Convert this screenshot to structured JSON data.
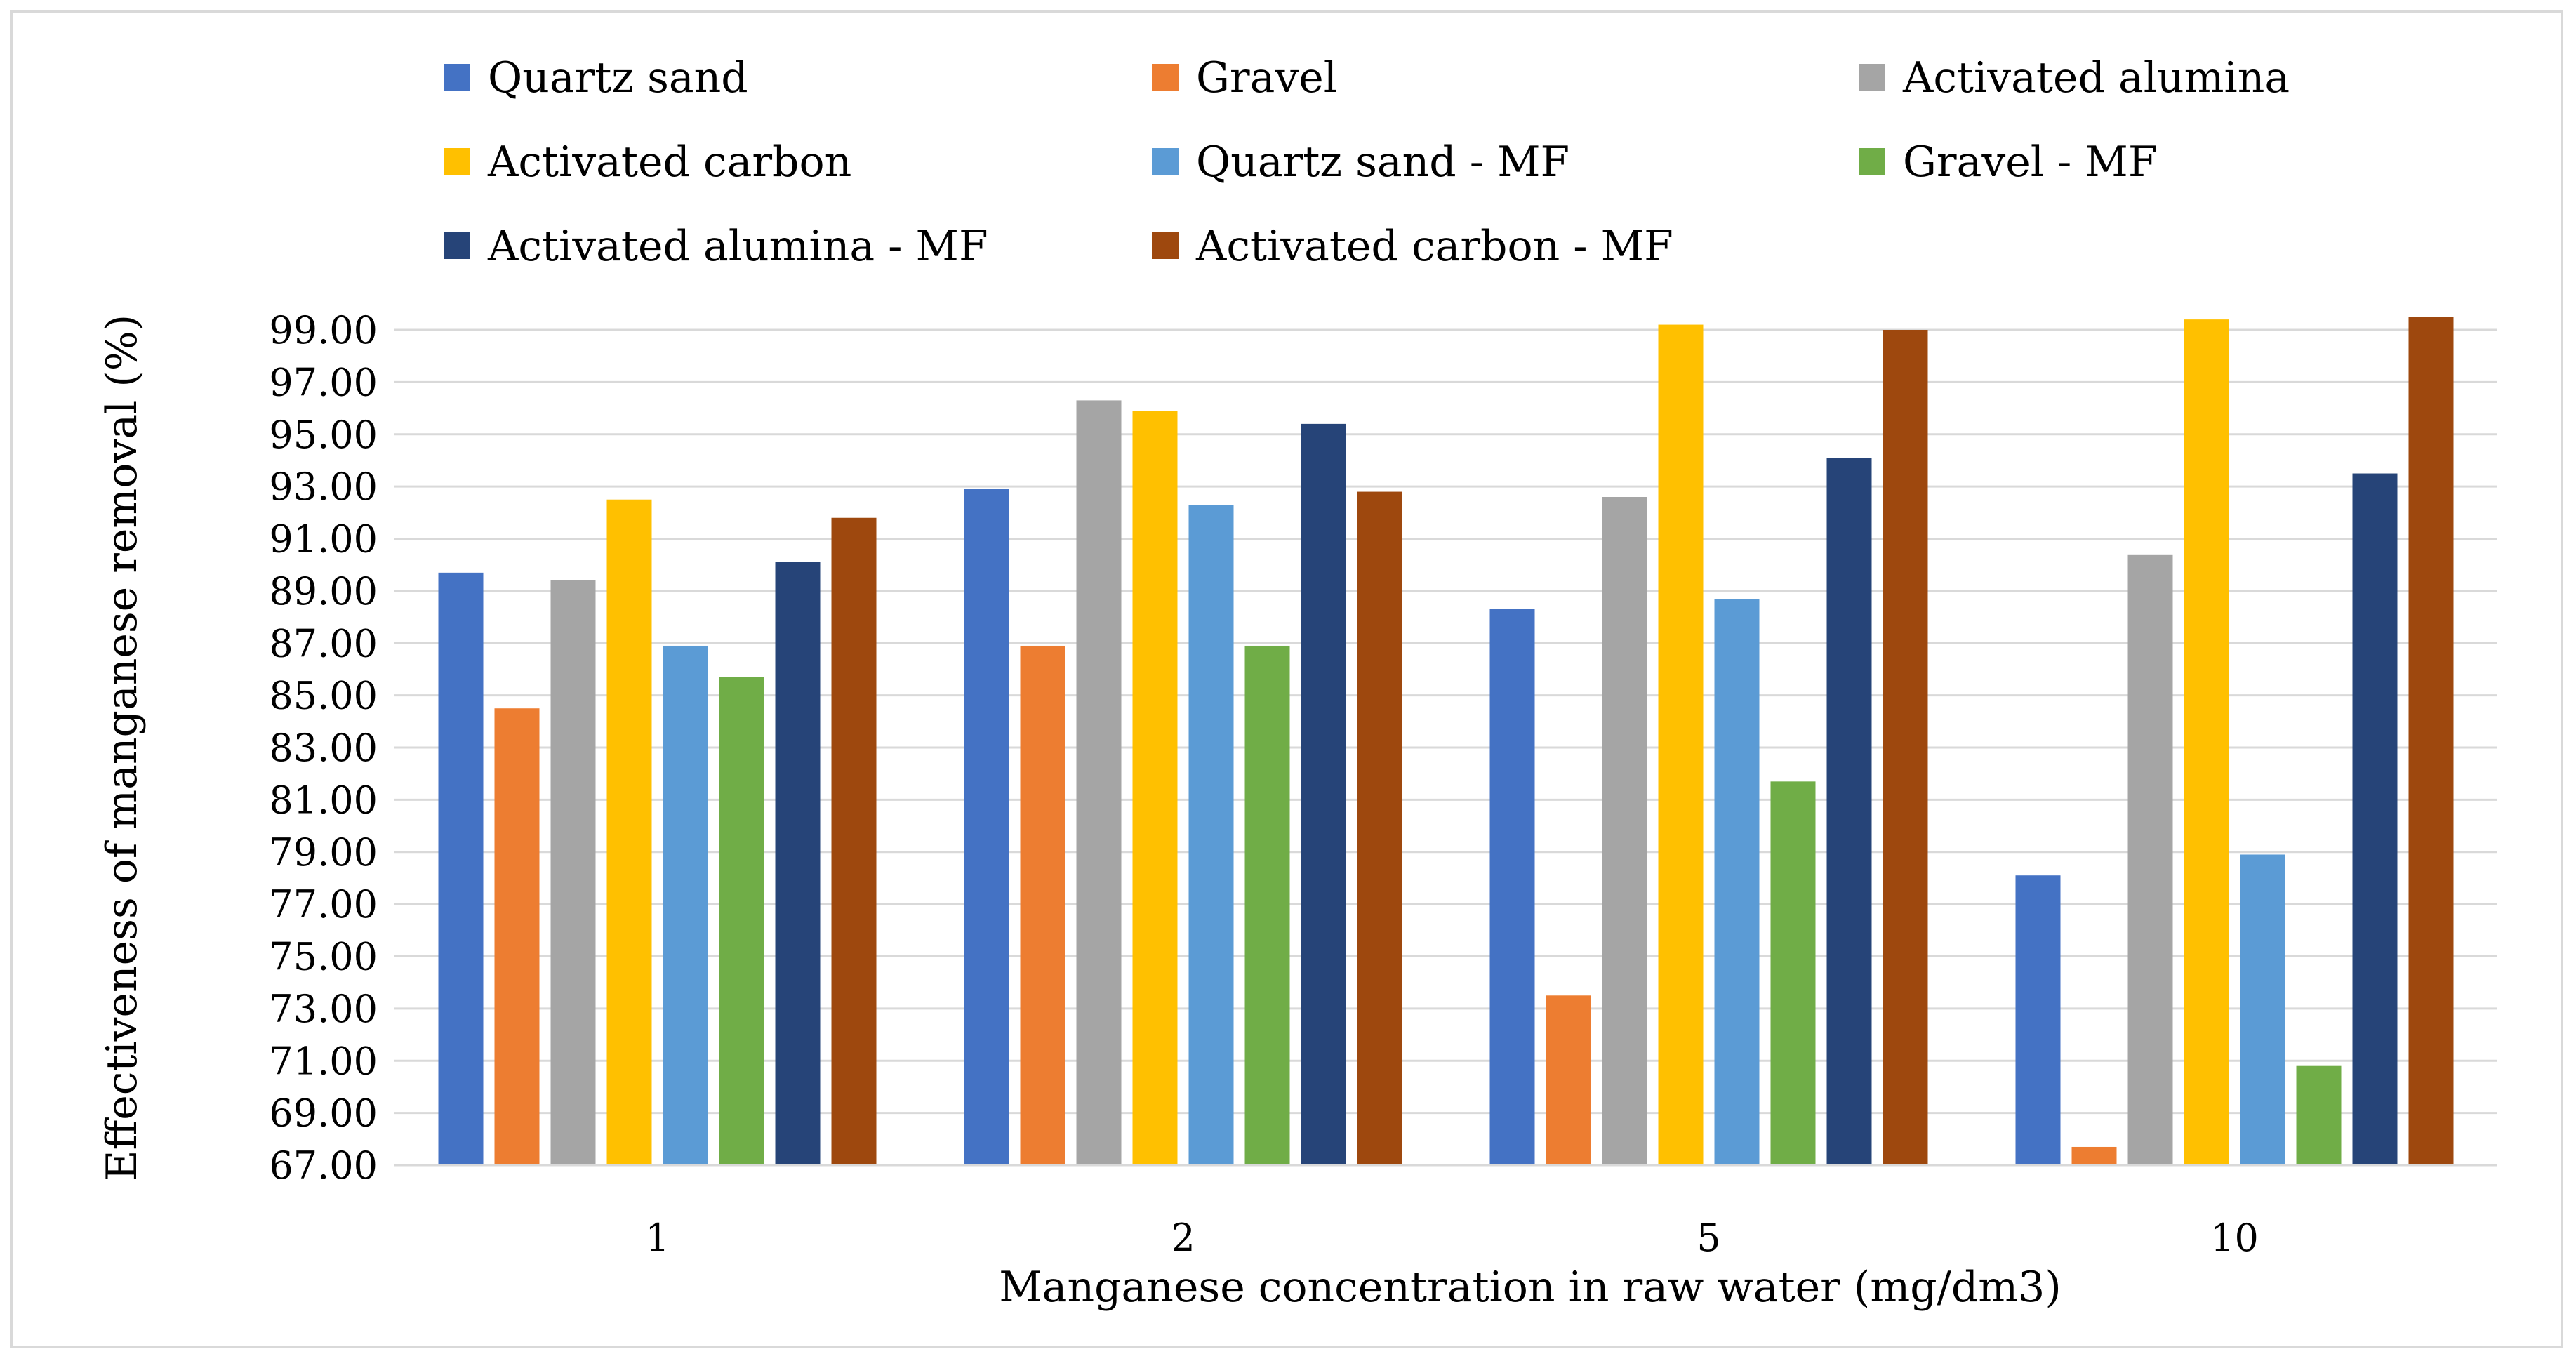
{
  "chart_data": {
    "type": "bar",
    "title": "",
    "xlabel": "Manganese concentration in raw water (mg/dm3)",
    "ylabel": "Effectiveness of manganese removal (%)",
    "ylim": [
      67,
      99
    ],
    "ytick_step": 2,
    "ytick_labels": [
      "67.00",
      "69.00",
      "71.00",
      "73.00",
      "75.00",
      "77.00",
      "79.00",
      "81.00",
      "83.00",
      "85.00",
      "87.00",
      "89.00",
      "91.00",
      "93.00",
      "95.00",
      "97.00",
      "99.00"
    ],
    "grid": true,
    "legend_position": "top",
    "categories": [
      "1",
      "2",
      "5",
      "10"
    ],
    "series": [
      {
        "name": "Quartz sand",
        "color": "#4472c4",
        "values": [
          89.7,
          92.9,
          88.3,
          78.1
        ]
      },
      {
        "name": "Gravel",
        "color": "#ed7d31",
        "values": [
          84.5,
          86.9,
          73.5,
          67.7
        ]
      },
      {
        "name": "Activated alumina",
        "color": "#a5a5a5",
        "values": [
          89.4,
          96.3,
          92.6,
          90.4
        ]
      },
      {
        "name": "Activated carbon",
        "color": "#ffc000",
        "values": [
          92.5,
          95.9,
          99.2,
          99.4
        ]
      },
      {
        "name": "Quartz sand - MF",
        "color": "#5b9bd5",
        "values": [
          86.9,
          92.3,
          88.7,
          78.9
        ]
      },
      {
        "name": "Gravel - MF",
        "color": "#70ad47",
        "values": [
          85.7,
          86.9,
          81.7,
          70.8
        ]
      },
      {
        "name": "Activated alumina - MF",
        "color": "#264478",
        "values": [
          90.1,
          95.4,
          94.1,
          93.5
        ]
      },
      {
        "name": "Activated carbon - MF",
        "color": "#9e480e",
        "values": [
          91.8,
          92.8,
          99.0,
          99.5
        ]
      }
    ]
  }
}
